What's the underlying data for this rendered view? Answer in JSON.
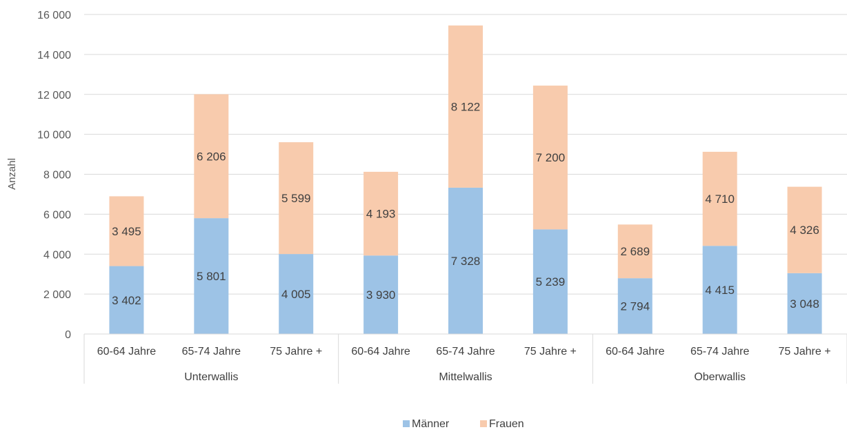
{
  "chart_data": {
    "type": "bar",
    "stacked": true,
    "title": "",
    "ylabel": "Anzahl",
    "ylim": [
      0,
      16000
    ],
    "yticks": [
      0,
      2000,
      4000,
      6000,
      8000,
      10000,
      12000,
      14000,
      16000
    ],
    "ytick_labels": [
      "0",
      "2 000",
      "4 000",
      "6 000",
      "8 000",
      "10 000",
      "12 000",
      "14 000",
      "16 000"
    ],
    "grid": true,
    "legend_position": "bottom",
    "groups": [
      {
        "label": "Unterwallis",
        "categories": [
          "60-64 Jahre",
          "65-74 Jahre",
          "75 Jahre +"
        ]
      },
      {
        "label": "Mittelwallis",
        "categories": [
          "60-64 Jahre",
          "65-74 Jahre",
          "75 Jahre +"
        ]
      },
      {
        "label": "Oberwallis",
        "categories": [
          "60-64 Jahre",
          "65-74 Jahre",
          "75 Jahre +"
        ]
      }
    ],
    "categories": [
      "60-64 Jahre",
      "65-74 Jahre",
      "75 Jahre +",
      "60-64 Jahre",
      "65-74 Jahre",
      "75 Jahre +",
      "60-64 Jahre",
      "65-74 Jahre",
      "75 Jahre +"
    ],
    "series": [
      {
        "name": "Männer",
        "color": "#9DC3E6",
        "values": [
          3402,
          5801,
          4005,
          3930,
          7328,
          5239,
          2794,
          4415,
          3048
        ],
        "labels": [
          "3 402",
          "5 801",
          "4 005",
          "3 930",
          "7 328",
          "5 239",
          "2 794",
          "4 415",
          "3 048"
        ]
      },
      {
        "name": "Frauen",
        "color": "#F8CBAD",
        "values": [
          3495,
          6206,
          5599,
          4193,
          8122,
          7200,
          2689,
          4710,
          4326
        ],
        "labels": [
          "3 495",
          "6 206",
          "5 599",
          "4 193",
          "8 122",
          "7 200",
          "2 689",
          "4 710",
          "4 326"
        ]
      }
    ]
  }
}
